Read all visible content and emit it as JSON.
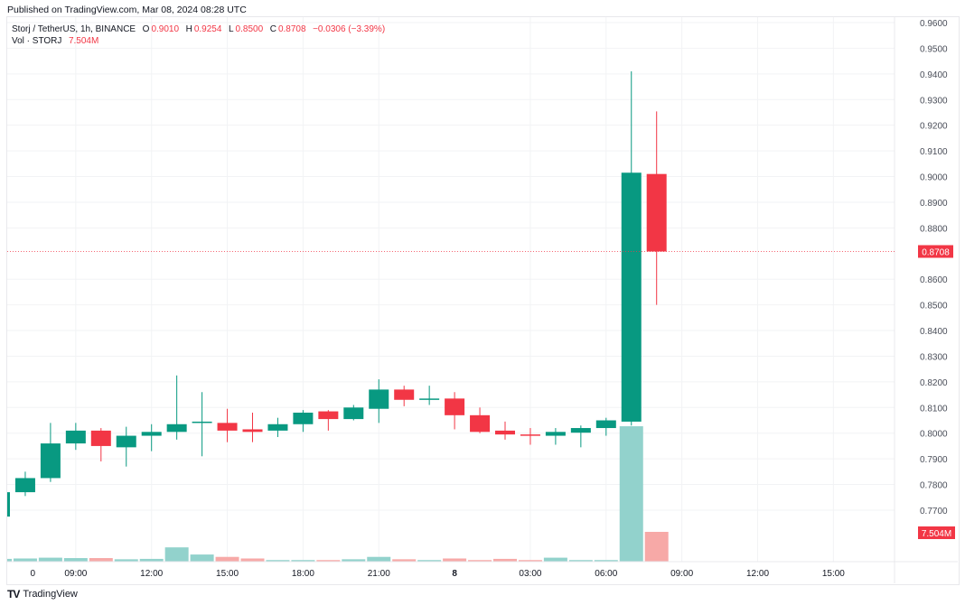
{
  "header": {
    "published": "Published on TradingView.com, Mar 08, 2024 08:28 UTC"
  },
  "legend": {
    "symbol": "Storj / TetherUS, 1h, BINANCE",
    "o_label": "O",
    "o": "0.9010",
    "h_label": "H",
    "h": "0.9254",
    "l_label": "L",
    "l": "0.8500",
    "c_label": "C",
    "c": "0.8708",
    "change": "−0.0306 (−3.39%)",
    "vol_label": "Vol · STORJ",
    "vol": "7.504M"
  },
  "colors": {
    "up": "#089981",
    "down": "#f23645",
    "vol_up": "#92d2cc",
    "vol_down": "#f7a9a7",
    "grid": "#f2f3f5"
  },
  "footer": {
    "brand": "TradingView",
    "logo_icon": "tradingview-logo-icon"
  },
  "chart_data": {
    "type": "candlestick",
    "price_ticks": [
      "0.9600",
      "0.9500",
      "0.9400",
      "0.9300",
      "0.9200",
      "0.9100",
      "0.9000",
      "0.8900",
      "0.8800",
      "0.8600",
      "0.8500",
      "0.8400",
      "0.8300",
      "0.8200",
      "0.8100",
      "0.8000",
      "0.7900",
      "0.7800",
      "0.7700"
    ],
    "ylim": [
      0.765,
      0.96
    ],
    "last_price_label": "0.8708",
    "last_volume_label": "7.504M",
    "time_ticks": [
      {
        "label": "0",
        "hour": 7.3
      },
      {
        "label": "09:00",
        "hour": 9
      },
      {
        "label": "12:00",
        "hour": 12
      },
      {
        "label": "15:00",
        "hour": 15
      },
      {
        "label": "18:00",
        "hour": 18
      },
      {
        "label": "21:00",
        "hour": 21
      },
      {
        "label": "8",
        "hour": 24,
        "bold": true
      },
      {
        "label": "03:00",
        "hour": 27
      },
      {
        "label": "06:00",
        "hour": 30
      },
      {
        "label": "09:00",
        "hour": 33
      },
      {
        "label": "12:00",
        "hour": 36
      },
      {
        "label": "15:00",
        "hour": 39
      }
    ],
    "candles": [
      {
        "t": 6,
        "o": 0.7675,
        "h": 0.778,
        "l": 0.766,
        "c": 0.777,
        "v": 0.7
      },
      {
        "t": 7,
        "o": 0.777,
        "h": 0.785,
        "l": 0.7755,
        "c": 0.7825,
        "v": 0.8
      },
      {
        "t": 8,
        "o": 0.7825,
        "h": 0.804,
        "l": 0.781,
        "c": 0.796,
        "v": 1.0
      },
      {
        "t": 9,
        "o": 0.796,
        "h": 0.804,
        "l": 0.7935,
        "c": 0.801,
        "v": 0.9
      },
      {
        "t": 10,
        "o": 0.801,
        "h": 0.802,
        "l": 0.789,
        "c": 0.795,
        "v": 0.9
      },
      {
        "t": 11,
        "o": 0.7945,
        "h": 0.8025,
        "l": 0.787,
        "c": 0.799,
        "v": 0.6
      },
      {
        "t": 12,
        "o": 0.799,
        "h": 0.8035,
        "l": 0.793,
        "c": 0.8005,
        "v": 0.7
      },
      {
        "t": 13,
        "o": 0.8005,
        "h": 0.8225,
        "l": 0.7975,
        "c": 0.8035,
        "v": 3.6
      },
      {
        "t": 14,
        "o": 0.804,
        "h": 0.816,
        "l": 0.791,
        "c": 0.8045,
        "v": 1.8
      },
      {
        "t": 15,
        "o": 0.804,
        "h": 0.8095,
        "l": 0.7965,
        "c": 0.801,
        "v": 1.2
      },
      {
        "t": 16,
        "o": 0.8015,
        "h": 0.808,
        "l": 0.7965,
        "c": 0.8005,
        "v": 0.8
      },
      {
        "t": 17,
        "o": 0.801,
        "h": 0.806,
        "l": 0.7985,
        "c": 0.8035,
        "v": 0.4
      },
      {
        "t": 18,
        "o": 0.8035,
        "h": 0.809,
        "l": 0.8005,
        "c": 0.808,
        "v": 0.4
      },
      {
        "t": 19,
        "o": 0.8085,
        "h": 0.809,
        "l": 0.801,
        "c": 0.8055,
        "v": 0.4
      },
      {
        "t": 20,
        "o": 0.8055,
        "h": 0.811,
        "l": 0.805,
        "c": 0.81,
        "v": 0.6
      },
      {
        "t": 21,
        "o": 0.8095,
        "h": 0.821,
        "l": 0.804,
        "c": 0.817,
        "v": 1.2
      },
      {
        "t": 22,
        "o": 0.817,
        "h": 0.8185,
        "l": 0.8105,
        "c": 0.813,
        "v": 0.6
      },
      {
        "t": 23,
        "o": 0.813,
        "h": 0.8185,
        "l": 0.811,
        "c": 0.8135,
        "v": 0.4
      },
      {
        "t": 24,
        "o": 0.8135,
        "h": 0.816,
        "l": 0.8015,
        "c": 0.807,
        "v": 0.8
      },
      {
        "t": 25,
        "o": 0.807,
        "h": 0.81,
        "l": 0.8,
        "c": 0.8005,
        "v": 0.4
      },
      {
        "t": 26,
        "o": 0.801,
        "h": 0.8045,
        "l": 0.7975,
        "c": 0.7995,
        "v": 0.7
      },
      {
        "t": 27,
        "o": 0.7995,
        "h": 0.802,
        "l": 0.7955,
        "c": 0.7993,
        "v": 0.4
      },
      {
        "t": 28,
        "o": 0.799,
        "h": 0.802,
        "l": 0.7955,
        "c": 0.8005,
        "v": 1.0
      },
      {
        "t": 29,
        "o": 0.8002,
        "h": 0.803,
        "l": 0.7945,
        "c": 0.802,
        "v": 0.4
      },
      {
        "t": 30,
        "o": 0.802,
        "h": 0.806,
        "l": 0.799,
        "c": 0.805,
        "v": 0.4
      },
      {
        "t": 31,
        "o": 0.8045,
        "h": 0.941,
        "l": 0.803,
        "c": 0.9015,
        "v": 34.1
      },
      {
        "t": 32,
        "o": 0.901,
        "h": 0.9254,
        "l": 0.85,
        "c": 0.8708,
        "v": 7.504
      }
    ]
  }
}
